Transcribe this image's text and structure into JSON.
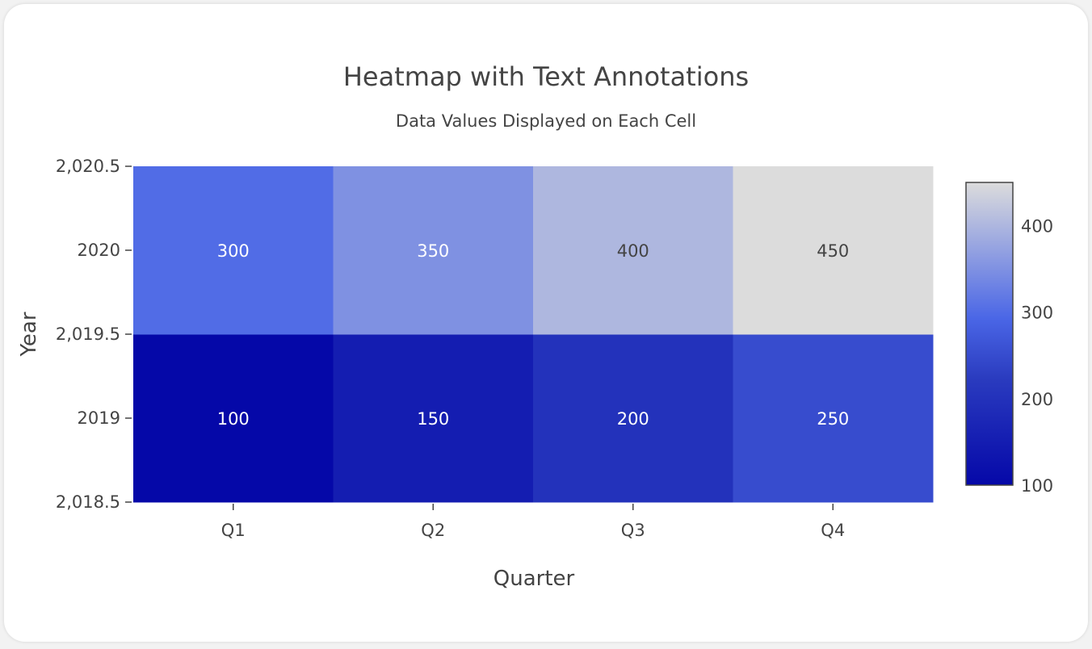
{
  "chart_data": {
    "type": "heatmap",
    "title": "Heatmap with Text Annotations",
    "subtitle": "Data Values Displayed on Each Cell",
    "xlabel": "Quarter",
    "ylabel": "Year",
    "x": [
      "Q1",
      "Q2",
      "Q3",
      "Q4"
    ],
    "y": [
      2019,
      2020
    ],
    "z": [
      [
        100,
        150,
        200,
        250
      ],
      [
        300,
        350,
        400,
        450
      ]
    ],
    "y_tick_labels": [
      "2,018.5",
      "2019",
      "2,019.5",
      "2020",
      "2,020.5"
    ],
    "y_ticks": [
      2018.5,
      2019,
      2019.5,
      2020,
      2020.5
    ],
    "ylim": [
      2018.5,
      2020.5
    ],
    "zlim": [
      100,
      450
    ],
    "colorbar_ticks": [
      100,
      200,
      300,
      400
    ],
    "colorbar_tick_labels": [
      "100",
      "200",
      "300",
      "400"
    ],
    "colorscale": [
      [
        0,
        "#0508a8"
      ],
      [
        0.35,
        "#2a3bbf"
      ],
      [
        0.55,
        "#4a66e6"
      ],
      [
        1,
        "#dcdcdc"
      ]
    ],
    "grid": false,
    "colorbar_position": "right"
  }
}
